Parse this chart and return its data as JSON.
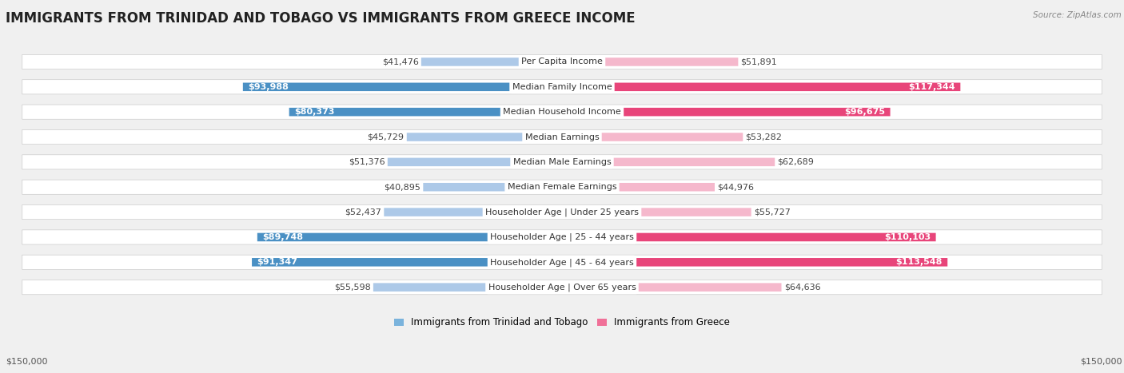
{
  "title": "IMMIGRANTS FROM TRINIDAD AND TOBAGO VS IMMIGRANTS FROM GREECE INCOME",
  "source": "Source: ZipAtlas.com",
  "categories": [
    "Per Capita Income",
    "Median Family Income",
    "Median Household Income",
    "Median Earnings",
    "Median Male Earnings",
    "Median Female Earnings",
    "Householder Age | Under 25 years",
    "Householder Age | 25 - 44 years",
    "Householder Age | 45 - 64 years",
    "Householder Age | Over 65 years"
  ],
  "trinidad_values": [
    41476,
    93988,
    80373,
    45729,
    51376,
    40895,
    52437,
    89748,
    91347,
    55598
  ],
  "greece_values": [
    51891,
    117344,
    96675,
    53282,
    62689,
    44976,
    55727,
    110103,
    113548,
    64636
  ],
  "trinidad_color_light": "#adc9e8",
  "trinidad_color_dark": "#4a90c4",
  "greece_color_light": "#f5b8cc",
  "greece_color_dark": "#e8457a",
  "inside_threshold": 75000,
  "trinidad_label": "Immigrants from Trinidad and Tobago",
  "greece_label": "Immigrants from Greece",
  "legend_trinidad_color": "#7ab3dc",
  "legend_greece_color": "#f07098",
  "max_value": 150000,
  "background_color": "#f0f0f0",
  "row_bg_color": "#ffffff",
  "title_fontsize": 12,
  "label_fontsize": 8,
  "value_fontsize": 8,
  "axis_label_bottom": "$150,000",
  "axis_label_bottom_right": "$150,000"
}
